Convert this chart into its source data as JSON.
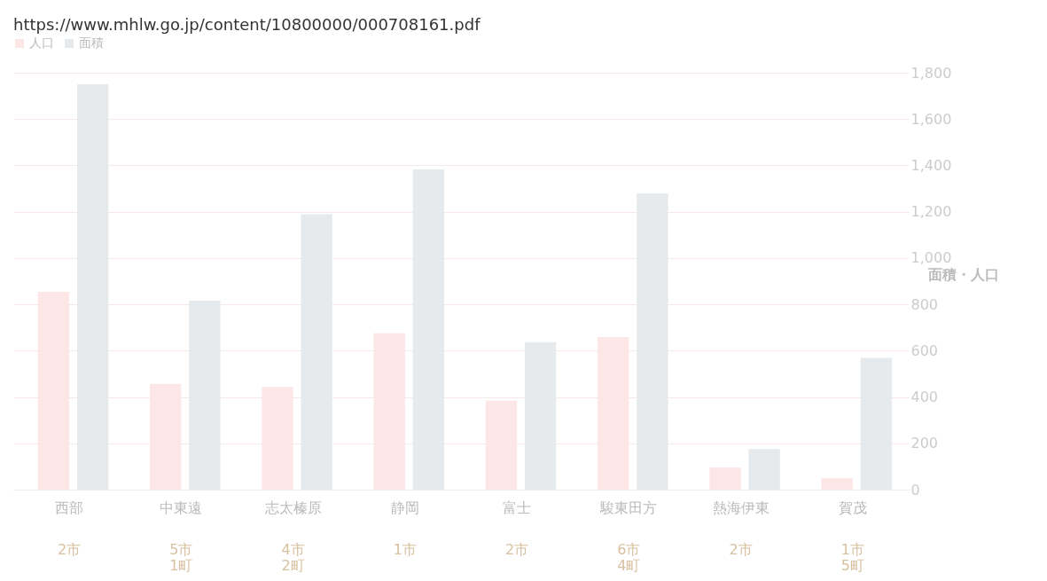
{
  "chart_data": {
    "type": "bar",
    "categories": [
      "西部",
      "中東遠",
      "志太榛原",
      "静岡",
      "富士",
      "駿東田方",
      "熱海伊東",
      "賀茂"
    ],
    "series": [
      {
        "name": "人口",
        "color": "#fde6e6",
        "values": [
          854,
          457,
          443,
          676,
          384,
          659,
          96,
          50
        ]
      },
      {
        "name": "面積",
        "color": "#e6eaec",
        "values": [
          1750,
          816,
          1189,
          1383,
          637,
          1279,
          175,
          569
        ]
      }
    ],
    "ylabel": "面積・人口",
    "ylim": [
      0,
      1800
    ],
    "yticks": [
      0,
      {
        "value": 200,
        "label": "200"
      },
      {
        "value": 400,
        "label": "400"
      },
      {
        "value": 600,
        "label": "600"
      },
      {
        "value": 800,
        "label": "800"
      },
      {
        "value": 1000,
        "label": "1,000"
      },
      {
        "value": 1200,
        "label": "1,200"
      },
      {
        "value": 1400,
        "label": "1,400"
      },
      {
        "value": 1600,
        "label": "1,600"
      },
      {
        "value": 1800,
        "label": "1,800"
      }
    ],
    "grid": "y",
    "legend": "top",
    "annotations": [
      "https://www.mhlw.go.jp/content/10800000/000708161.pdf",
      "2市",
      "5市\n1町",
      "4市\n2町",
      "1市",
      "2市",
      "6市\n4町",
      "2市",
      "1市\n5町"
    ]
  }
}
